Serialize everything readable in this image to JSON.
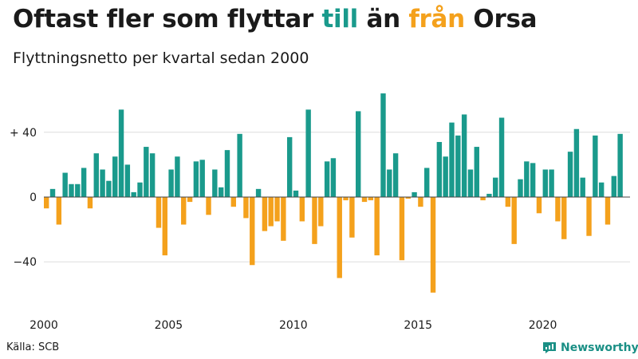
{
  "header": {
    "title_part1": "Oftast fler som flyttar ",
    "title_till": "till",
    "title_part2": " än ",
    "title_fran": "från",
    "title_part3": " Orsa",
    "subtitle": "Flyttningsnetto per kvartal sedan 2000"
  },
  "footer": {
    "source": "Källa: SCB",
    "brand": "Newsworthy"
  },
  "colors": {
    "positive": "#1a9a8c",
    "negative": "#f4a11c",
    "grid": "#dddddd",
    "zero_line": "#444444"
  },
  "chart_data": {
    "type": "bar",
    "title": "Oftast fler som flyttar till än från Orsa",
    "subtitle": "Flyttningsnetto per kvartal sedan 2000",
    "xlabel": "",
    "ylabel": "",
    "ylim": [
      -60,
      64
    ],
    "yticks": [
      {
        "value": 40,
        "label": "+ 40"
      },
      {
        "value": 0,
        "label": "0"
      },
      {
        "value": -40,
        "label": "−40"
      }
    ],
    "xticks": [
      {
        "value": 2000,
        "label": "2000"
      },
      {
        "value": 2005,
        "label": "2005"
      },
      {
        "value": 2010,
        "label": "2010"
      },
      {
        "value": 2015,
        "label": "2015"
      },
      {
        "value": 2020,
        "label": "2020"
      }
    ],
    "x_start": 2000,
    "periods_per_year": 4,
    "values": [
      -7,
      5,
      -17,
      15,
      8,
      8,
      18,
      -7,
      27,
      17,
      10,
      25,
      54,
      20,
      3,
      9,
      31,
      27,
      -19,
      -36,
      17,
      25,
      -17,
      -3,
      22,
      23,
      -11,
      17,
      6,
      29,
      -6,
      39,
      -13,
      -42,
      5,
      -21,
      -18,
      -15,
      -27,
      37,
      4,
      -15,
      54,
      -29,
      -18,
      22,
      24,
      -50,
      -2,
      -25,
      53,
      -3,
      -2,
      -36,
      64,
      17,
      27,
      -39,
      -1,
      3,
      -6,
      18,
      -59,
      34,
      25,
      46,
      38,
      51,
      17,
      31,
      -2,
      2,
      12,
      49,
      -6,
      -29,
      11,
      22,
      21,
      -10,
      17,
      17,
      -15,
      -26,
      28,
      42,
      12,
      -24,
      38,
      9,
      -17,
      13,
      39
    ]
  }
}
